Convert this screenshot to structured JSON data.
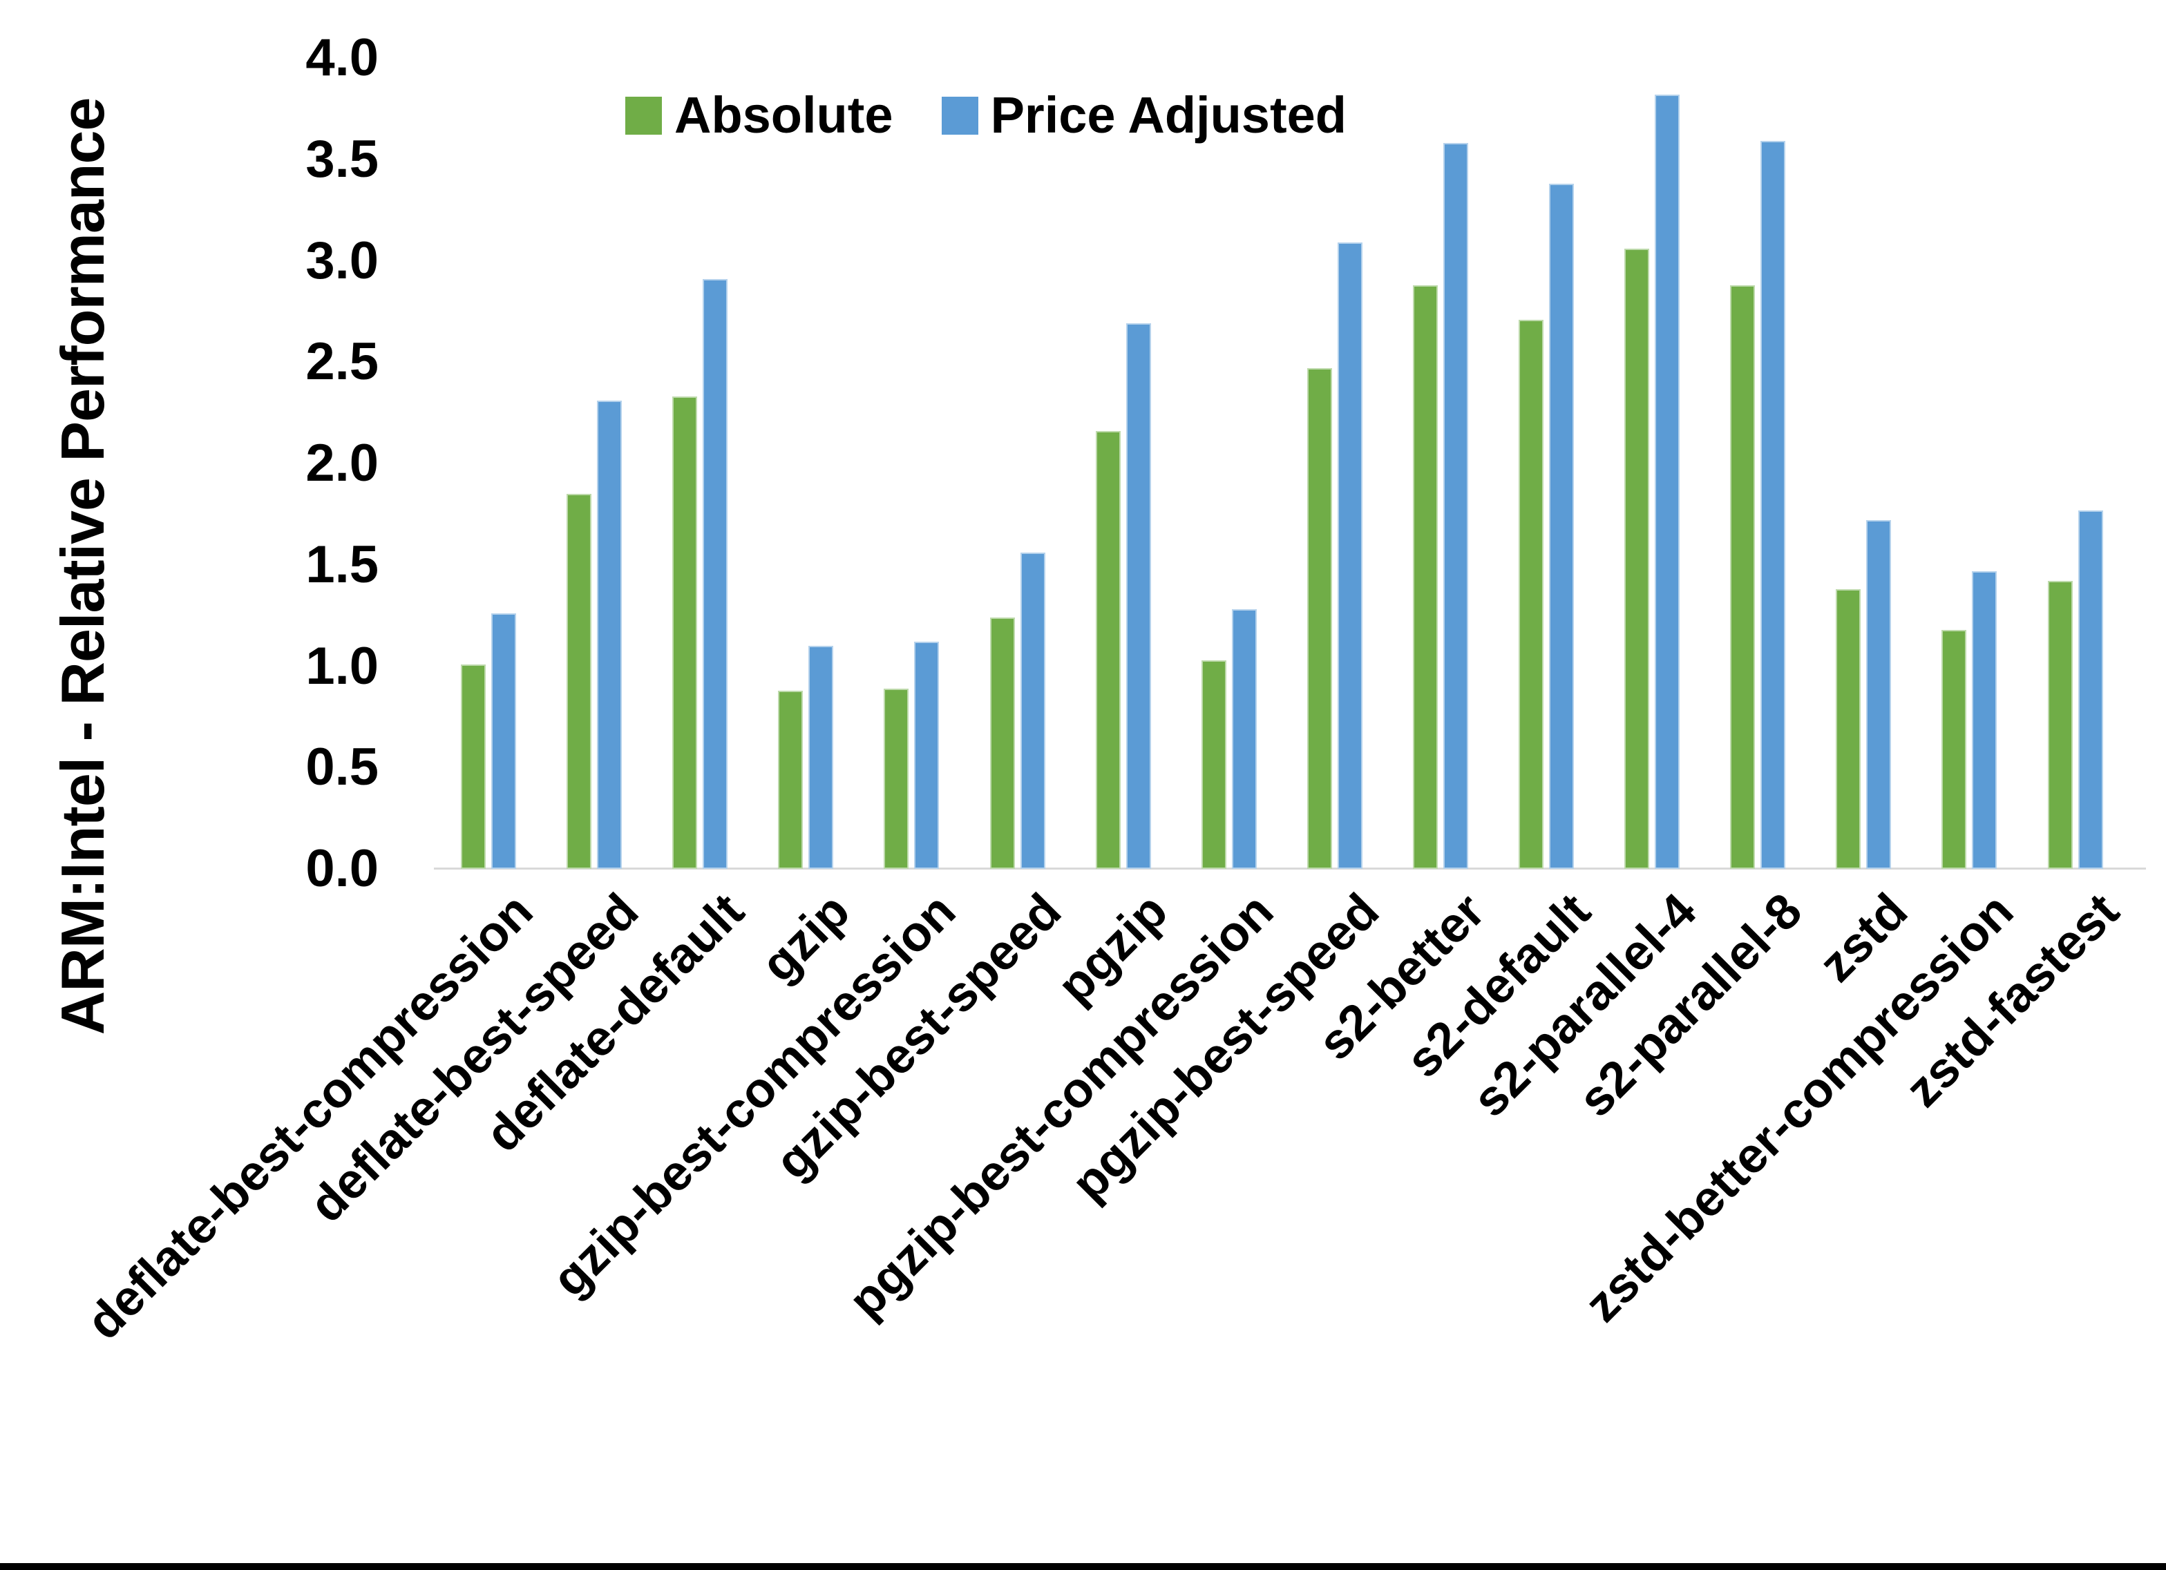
{
  "page": {
    "background": "#FFFFFF"
  },
  "chart_data": {
    "type": "bar",
    "title": "",
    "xlabel": "",
    "ylabel": "ARM:Intel - Relative Performance",
    "ylim": [
      0.0,
      4.0
    ],
    "ytick_step": 0.5,
    "y_ticks": [
      "4.0",
      "3.5",
      "3.0",
      "2.5",
      "2.0",
      "1.5",
      "1.0",
      "0.5",
      "0.0"
    ],
    "grid": false,
    "legend_position": "top",
    "categories": [
      "deflate-best-compression",
      "deflate-best-speed",
      "deflate-default",
      "gzip",
      "gzip-best-compression",
      "gzip-best-speed",
      "pgzip",
      "pgzip-best-compression",
      "pgzip-best-speed",
      "s2-better",
      "s2-default",
      "s2-parallel-4",
      "s2-parallel-8",
      "zstd",
      "zstd-better-compression",
      "zstd-fastest"
    ],
    "series": [
      {
        "name": "Absolute",
        "color": "#70AD47",
        "values": [
          1.01,
          1.85,
          2.33,
          0.88,
          0.89,
          1.24,
          2.16,
          1.03,
          2.47,
          2.88,
          2.71,
          3.06,
          2.88,
          1.38,
          1.18,
          1.42
        ]
      },
      {
        "name": "Price Adjusted",
        "color": "#5B9BD5",
        "values": [
          1.26,
          2.31,
          2.91,
          1.1,
          1.12,
          1.56,
          2.69,
          1.28,
          3.09,
          3.58,
          3.38,
          3.82,
          3.59,
          1.72,
          1.47,
          1.77
        ]
      }
    ],
    "colors": {
      "axis_line": "#D9D9D9",
      "text": "#000000",
      "bottom_border": "#000000",
      "background": "#FFFFFF"
    }
  }
}
